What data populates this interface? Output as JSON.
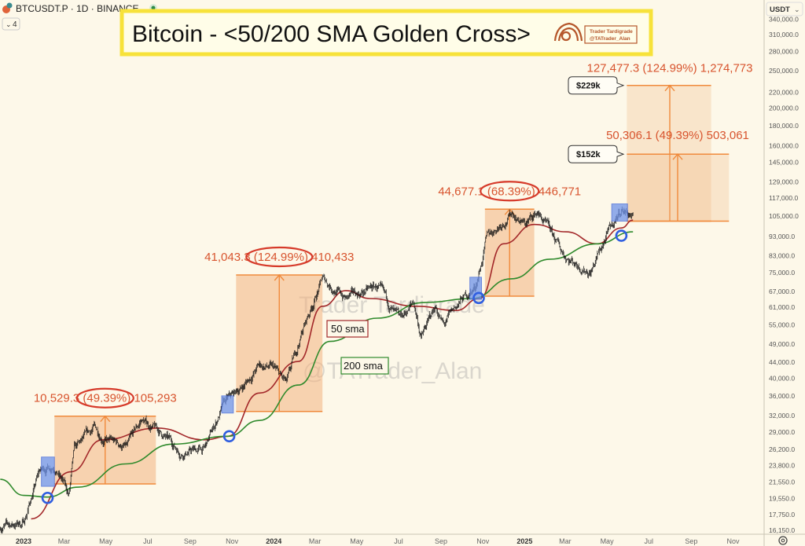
{
  "header": {
    "symbol": "BTCUSDT.P · 1D · BINANCE",
    "indicator_toggle": "4",
    "currency": "USDT",
    "currency_caret": "⌄"
  },
  "title_banner": {
    "title": "Bitcoin - <50/200 SMA Golden Cross>",
    "credit_line1": "Trader Tardigrade",
    "credit_line2": "@TATrader_Alan"
  },
  "watermark": {
    "line1": "Trader Tardigrade",
    "line2": "@TATrader_Alan"
  },
  "colors": {
    "background": "#fdf8e9",
    "candles": "#111111",
    "sma50": "#a3282a",
    "sma200": "#2f8a2c",
    "projection_box": "#f2b27f",
    "projection_line": "#f08a3c",
    "label_text": "#d8542e",
    "ellipse": "#d63a2a",
    "cross_marker": "#2f5ee0",
    "title_border": "#f7e23a"
  },
  "chart_data": {
    "type": "candlestick",
    "title": "Bitcoin - <50/200 SMA Golden Cross>",
    "y_scale": "log",
    "ylim": [
      16150,
      340000
    ],
    "xlim": [
      "2022-11-28",
      "2025-11-30"
    ],
    "grid": false,
    "y_ticks": [
      "340,000.0",
      "310,000.0",
      "280,000.0",
      "250,000.0",
      "220,000.0",
      "200,000.0",
      "180,000.0",
      "160,000.0",
      "145,000.0",
      "129,000.0",
      "117,000.0",
      "105,000.0",
      "93,000.0",
      "83,000.0",
      "75,000.0",
      "67,000.0",
      "61,000.0",
      "55,000.0",
      "49,000.0",
      "44,000.0",
      "40,000.0",
      "36,000.0",
      "32,000.0",
      "29,000.0",
      "26,200.0",
      "23,800.0",
      "21,550.0",
      "19,550.0",
      "17,750.0",
      "16,150.0"
    ],
    "x_ticks": [
      {
        "label": "2023",
        "date": "2023-01-01",
        "year": true
      },
      {
        "label": "Mar",
        "date": "2023-03-01"
      },
      {
        "label": "May",
        "date": "2023-05-01"
      },
      {
        "label": "Jul",
        "date": "2023-07-01"
      },
      {
        "label": "Sep",
        "date": "2023-09-01"
      },
      {
        "label": "Nov",
        "date": "2023-11-01"
      },
      {
        "label": "2024",
        "date": "2024-01-01",
        "year": true
      },
      {
        "label": "Mar",
        "date": "2024-03-01"
      },
      {
        "label": "May",
        "date": "2024-05-01"
      },
      {
        "label": "Jul",
        "date": "2024-07-01"
      },
      {
        "label": "Sep",
        "date": "2024-09-01"
      },
      {
        "label": "Nov",
        "date": "2024-11-01"
      },
      {
        "label": "2025",
        "date": "2025-01-01",
        "year": true
      },
      {
        "label": "Mar",
        "date": "2025-03-01"
      },
      {
        "label": "May",
        "date": "2025-05-01"
      },
      {
        "label": "Jul",
        "date": "2025-07-01"
      },
      {
        "label": "Sep",
        "date": "2025-09-01"
      },
      {
        "label": "Nov",
        "date": "2025-11-01"
      }
    ],
    "price": [
      [
        "2022-11-28",
        16500
      ],
      [
        "2023-01-01",
        16900
      ],
      [
        "2023-01-24",
        22900
      ],
      [
        "2023-02-15",
        24000
      ],
      [
        "2023-03-08",
        19900
      ],
      [
        "2023-03-16",
        25800
      ],
      [
        "2023-04-14",
        29700
      ],
      [
        "2023-05-01",
        27700
      ],
      [
        "2023-06-01",
        26400
      ],
      [
        "2023-06-22",
        31100
      ],
      [
        "2023-07-15",
        29300
      ],
      [
        "2023-08-18",
        25800
      ],
      [
        "2023-09-22",
        26200
      ],
      [
        "2023-10-20",
        34200
      ],
      [
        "2023-11-19",
        38400
      ],
      [
        "2023-12-11",
        43200
      ],
      [
        "2024-01-01",
        42200
      ],
      [
        "2024-01-20",
        38400
      ],
      [
        "2024-02-12",
        53300
      ],
      [
        "2024-03-12",
        72300
      ],
      [
        "2024-04-15",
        64300
      ],
      [
        "2024-05-31",
        68900
      ],
      [
        "2024-07-02",
        55900
      ],
      [
        "2024-07-23",
        62800
      ],
      [
        "2024-08-03",
        51000
      ],
      [
        "2024-08-24",
        61400
      ],
      [
        "2024-09-05",
        54600
      ],
      [
        "2024-09-28",
        62800
      ],
      [
        "2024-10-21",
        68900
      ],
      [
        "2024-11-08",
        93400
      ],
      [
        "2024-12-14",
        107400
      ],
      [
        "2025-01-01",
        100000
      ],
      [
        "2025-01-20",
        107400
      ],
      [
        "2025-02-24",
        85000
      ],
      [
        "2025-03-08",
        81300
      ],
      [
        "2025-04-07",
        75600
      ],
      [
        "2025-05-01",
        93400
      ],
      [
        "2025-05-22",
        109900
      ],
      [
        "2025-06-08",
        105000
      ]
    ],
    "series": [
      {
        "name": "50 sma",
        "values": [
          [
            "2023-01-12",
            17300
          ],
          [
            "2023-03-11",
            22900
          ],
          [
            "2023-04-26",
            27700
          ],
          [
            "2023-07-15",
            29700
          ],
          [
            "2023-09-22",
            27700
          ],
          [
            "2023-10-26",
            28300
          ],
          [
            "2023-12-11",
            36600
          ],
          [
            "2024-02-06",
            44200
          ],
          [
            "2024-03-12",
            61400
          ],
          [
            "2024-04-15",
            67400
          ],
          [
            "2024-05-20",
            64300
          ],
          [
            "2024-07-27",
            61400
          ],
          [
            "2024-09-23",
            59900
          ],
          [
            "2024-10-27",
            64300
          ],
          [
            "2024-12-01",
            89100
          ],
          [
            "2025-01-15",
            100000
          ],
          [
            "2025-03-02",
            95700
          ],
          [
            "2025-04-17",
            89100
          ],
          [
            "2025-05-22",
            97900
          ],
          [
            "2025-06-08",
            102600
          ]
        ]
      },
      {
        "name": "200 sma",
        "values": [
          [
            "2022-11-28",
            21900
          ],
          [
            "2023-01-01",
            19900
          ],
          [
            "2023-02-04",
            19700
          ],
          [
            "2023-03-22",
            20900
          ],
          [
            "2023-05-30",
            24000
          ],
          [
            "2023-08-07",
            27000
          ],
          [
            "2023-10-26",
            28300
          ],
          [
            "2023-12-11",
            31100
          ],
          [
            "2024-02-06",
            38400
          ],
          [
            "2024-03-23",
            49800
          ],
          [
            "2024-05-31",
            57200
          ],
          [
            "2024-08-08",
            62800
          ],
          [
            "2024-10-16",
            64300
          ],
          [
            "2024-12-12",
            72300
          ],
          [
            "2025-02-07",
            81300
          ],
          [
            "2025-04-17",
            89100
          ],
          [
            "2025-06-08",
            95700
          ]
        ]
      }
    ],
    "golden_crosses": [
      {
        "date": "2023-02-05",
        "price": 19600
      },
      {
        "date": "2023-10-28",
        "price": 28300
      },
      {
        "date": "2024-10-26",
        "price": 64500
      },
      {
        "date": "2025-05-22",
        "price": 93500
      }
    ],
    "pre_cross_boxes": [
      {
        "start": "2023-01-27",
        "end": "2023-02-15",
        "low": 21000,
        "high": 25000
      },
      {
        "start": "2023-10-17",
        "end": "2023-11-03",
        "low": 32500,
        "high": 36000
      },
      {
        "start": "2024-10-13",
        "end": "2024-10-30",
        "low": 64000,
        "high": 73000
      },
      {
        "start": "2025-05-08",
        "end": "2025-05-31",
        "low": 102000,
        "high": 113000
      }
    ],
    "projections": [
      {
        "start": "2023-02-15",
        "end": "2023-07-13",
        "low": 21300,
        "high": 31900,
        "change": "10,529.3",
        "percent": "(49.39%)",
        "ticks": "105,293",
        "circled": true
      },
      {
        "start": "2023-11-07",
        "end": "2024-03-12",
        "low": 32800,
        "high": 74000,
        "change": "41,043.3",
        "percent": "(124.99%)",
        "ticks": "410,433",
        "circled": true
      },
      {
        "start": "2024-11-04",
        "end": "2025-01-15",
        "low": 65200,
        "high": 109500,
        "change": "44,677.1",
        "percent": "(68.39%)",
        "ticks": "446,771",
        "circled": true
      },
      {
        "start": "2025-05-30",
        "end": "2025-09-30",
        "low": 102000,
        "high": 229000,
        "change": "127,477.3",
        "percent": "(124.99%)",
        "ticks": "1,274,773",
        "circled": false,
        "callout": "$229k"
      },
      {
        "start": "2025-05-30",
        "end": "2025-10-26",
        "low": 102000,
        "high": 152000,
        "change": "50,306.1",
        "percent": "(49.39%)",
        "ticks": "503,061",
        "circled": false,
        "callout": "$152k"
      }
    ]
  }
}
